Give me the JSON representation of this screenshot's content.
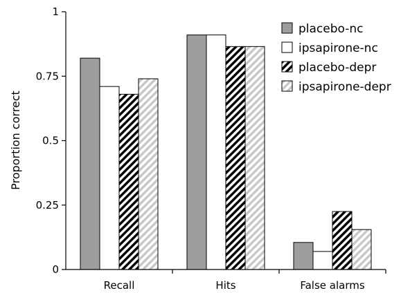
{
  "chart_data": {
    "type": "bar",
    "categories": [
      "Recall",
      "Hits",
      "False alarms"
    ],
    "series": [
      {
        "name": "placebo-nc",
        "values": [
          0.82,
          0.91,
          0.105
        ],
        "fill": "#9e9e9e",
        "pattern": "solid"
      },
      {
        "name": "ipsapirone-nc",
        "values": [
          0.71,
          0.91,
          0.07
        ],
        "fill": "#ffffff",
        "pattern": "solid"
      },
      {
        "name": "placebo-depr",
        "values": [
          0.68,
          0.865,
          0.225
        ],
        "fill": "#000000",
        "pattern": "hatch-dense"
      },
      {
        "name": "ipsapirone-depr",
        "values": [
          0.74,
          0.865,
          0.155
        ],
        "fill": "#c8c8c8",
        "pattern": "hatch-light"
      }
    ],
    "ylabel": "Proportion correct",
    "xlabel": "",
    "ylim": [
      0,
      1
    ],
    "yticks": [
      0,
      0.25,
      0.5,
      0.75,
      1
    ],
    "ytick_labels": [
      "0",
      "0.25",
      "0.5",
      "0.75",
      "1"
    ],
    "grid": false,
    "legend_position": "top-right"
  }
}
